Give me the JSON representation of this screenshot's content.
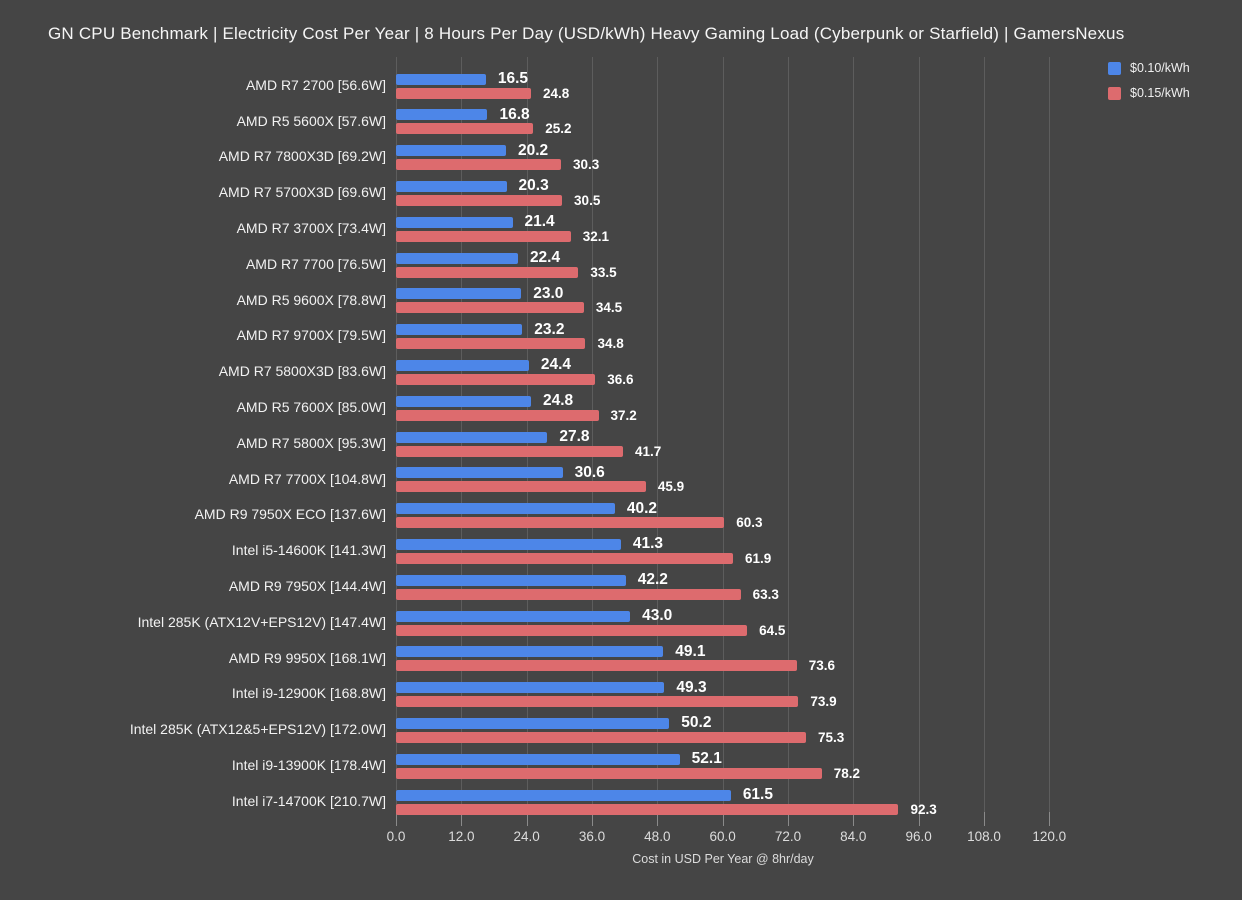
{
  "title": "GN CPU Benchmark | Electricity Cost Per Year | 8 Hours Per Day (USD/kWh) Heavy Gaming Load (Cyberpunk or Starfield) | GamersNexus",
  "colors": {
    "background": "#454545",
    "gridline": "#5d5d5d",
    "title_text": "#f5f5f5",
    "tick_text": "#dcdcdc",
    "category_text": "#f2f2f2",
    "value_text": "#ffffff",
    "series_blue": "#4d86e8",
    "series_red": "#dd6b6e"
  },
  "chart_data": {
    "type": "bar",
    "orientation": "horizontal",
    "title": "GN CPU Benchmark | Electricity Cost Per Year | 8 Hours Per Day (USD/kWh) Heavy Gaming Load (Cyberpunk or Starfield) | GamersNexus",
    "xlabel": "Cost in USD Per Year @ 8hr/day",
    "xlim": [
      0,
      120
    ],
    "xticks": [
      0,
      12,
      24,
      36,
      48,
      60,
      72,
      84,
      96,
      108,
      120
    ],
    "grid": true,
    "legend_position": "top-right",
    "value_labels": true,
    "categories": [
      "AMD R7 2700 [56.6W]",
      "AMD R5 5600X [57.6W]",
      "AMD R7 7800X3D [69.2W]",
      "AMD R7 5700X3D [69.6W]",
      "AMD R7 3700X [73.4W]",
      "AMD R7 7700 [76.5W]",
      "AMD R5 9600X [78.8W]",
      "AMD R7 9700X [79.5W]",
      "AMD R7 5800X3D [83.6W]",
      "AMD R5 7600X [85.0W]",
      "AMD R7 5800X [95.3W]",
      "AMD R7 7700X [104.8W]",
      "AMD R9 7950X ECO [137.6W]",
      "Intel i5-14600K [141.3W]",
      "AMD R9 7950X [144.4W]",
      "Intel 285K (ATX12V+EPS12V) [147.4W]",
      "AMD R9 9950X [168.1W]",
      "Intel i9-12900K [168.8W]",
      "Intel 285K (ATX12&5+EPS12V) [172.0W]",
      "Intel i9-13900K [178.4W]",
      "Intel i7-14700K [210.7W]"
    ],
    "series": [
      {
        "name": "$0.10/kWh",
        "color": "#4d86e8",
        "values": [
          16.5,
          16.8,
          20.2,
          20.3,
          21.4,
          22.4,
          23.0,
          23.2,
          24.4,
          24.8,
          27.8,
          30.6,
          40.2,
          41.3,
          42.2,
          43.0,
          49.1,
          49.3,
          50.2,
          52.1,
          61.5
        ]
      },
      {
        "name": "$0.15/kWh",
        "color": "#dd6b6e",
        "values": [
          24.8,
          25.2,
          30.3,
          30.5,
          32.1,
          33.5,
          34.5,
          34.8,
          36.6,
          37.2,
          41.7,
          45.9,
          60.3,
          61.9,
          63.3,
          64.5,
          73.6,
          73.9,
          75.3,
          78.2,
          92.3
        ]
      }
    ]
  }
}
